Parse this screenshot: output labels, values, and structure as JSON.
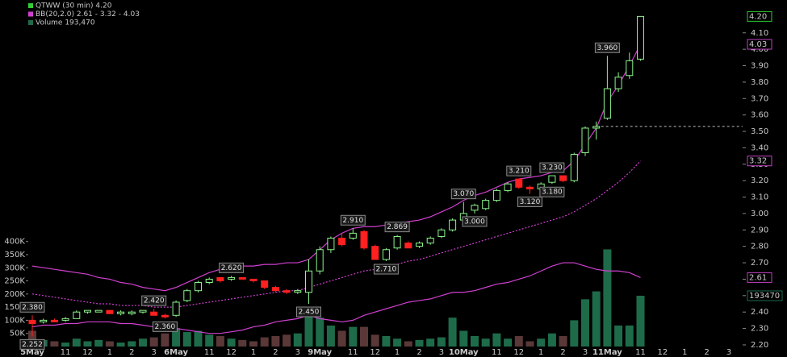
{
  "chart_data": {
    "type": "candlestick",
    "legend": [
      {
        "text": "QTWW (30 min) 4.20",
        "color": "#e6e6e6",
        "icon": "#33cc33"
      },
      {
        "text": "BB(20,2.0) 2.61 - 3.32 - 4.03",
        "color": "#d040d0",
        "icon": "#d040d0"
      },
      {
        "text": "Volume 193,470",
        "color": "#2aa070",
        "icon": "#1e6b4a"
      }
    ],
    "categories": [
      "5May",
      null,
      null,
      "11",
      null,
      "12",
      null,
      "1",
      null,
      "2",
      null,
      "3",
      null,
      "6May",
      null,
      null,
      "11",
      null,
      "12",
      null,
      "1",
      null,
      "2",
      null,
      "3",
      null,
      "9May",
      null,
      null,
      "11",
      null,
      "12",
      null,
      "1",
      null,
      "2",
      null,
      "3",
      null,
      "10May",
      null,
      null,
      "11",
      null,
      "12",
      null,
      "1",
      null,
      "2",
      null,
      "3",
      null,
      "11May",
      null,
      null,
      "11",
      null,
      "12",
      null,
      "1",
      null,
      "2",
      null,
      "3",
      null
    ],
    "open": [
      2.35,
      2.34,
      2.35,
      2.35,
      2.36,
      2.4,
      2.4,
      2.41,
      2.39,
      2.39,
      2.4,
      2.4,
      2.38,
      2.38,
      2.47,
      2.53,
      2.58,
      2.61,
      2.6,
      2.61,
      2.6,
      2.59,
      2.55,
      2.53,
      2.52,
      2.52,
      2.65,
      2.78,
      2.85,
      2.85,
      2.89,
      2.8,
      2.72,
      2.79,
      2.82,
      2.8,
      2.82,
      2.86,
      2.9,
      2.96,
      3.02,
      3.03,
      3.08,
      3.14,
      3.21,
      3.16,
      3.15,
      3.19,
      3.23,
      3.2,
      3.37,
      3.52,
      3.58,
      3.76,
      3.84,
      3.94,
      null,
      null,
      null,
      null,
      null,
      null,
      null,
      null,
      null
    ],
    "high": [
      2.38,
      2.36,
      2.36,
      2.37,
      2.41,
      2.41,
      2.41,
      2.41,
      2.41,
      2.41,
      2.41,
      2.42,
      2.39,
      2.47,
      2.54,
      2.59,
      2.61,
      2.61,
      2.62,
      2.61,
      2.6,
      2.59,
      2.56,
      2.54,
      2.54,
      2.72,
      2.8,
      2.86,
      2.88,
      2.91,
      2.9,
      2.81,
      2.79,
      2.869,
      2.83,
      2.83,
      2.86,
      2.91,
      2.97,
      3.07,
      3.06,
      3.09,
      3.15,
      3.19,
      3.21,
      3.17,
      3.19,
      3.23,
      3.23,
      3.37,
      3.53,
      3.56,
      3.96,
      3.86,
      3.98,
      4.2,
      null,
      null,
      null,
      null,
      null,
      null,
      null,
      null,
      null
    ],
    "low": [
      2.252,
      2.33,
      2.34,
      2.34,
      2.36,
      2.39,
      2.4,
      2.39,
      2.38,
      2.38,
      2.39,
      2.38,
      2.36,
      2.37,
      2.46,
      2.52,
      2.57,
      2.58,
      2.59,
      2.6,
      2.58,
      2.54,
      2.52,
      2.51,
      2.51,
      2.45,
      2.63,
      2.76,
      2.8,
      2.84,
      2.78,
      2.72,
      2.71,
      2.78,
      2.79,
      2.79,
      2.81,
      2.85,
      2.89,
      2.95,
      3.0,
      3.02,
      3.07,
      3.13,
      3.15,
      3.12,
      3.14,
      3.18,
      3.19,
      3.19,
      3.35,
      3.45,
      3.57,
      3.74,
      3.82,
      3.93,
      null,
      null,
      null,
      null,
      null,
      null,
      null,
      null,
      null
    ],
    "close": [
      2.33,
      2.35,
      2.34,
      2.36,
      2.4,
      2.41,
      2.41,
      2.39,
      2.4,
      2.4,
      2.41,
      2.38,
      2.37,
      2.46,
      2.53,
      2.58,
      2.6,
      2.59,
      2.61,
      2.6,
      2.59,
      2.55,
      2.53,
      2.52,
      2.53,
      2.65,
      2.78,
      2.85,
      2.81,
      2.88,
      2.79,
      2.72,
      2.78,
      2.86,
      2.79,
      2.82,
      2.85,
      2.9,
      2.96,
      3.0,
      3.05,
      3.08,
      3.14,
      3.18,
      3.16,
      3.15,
      3.18,
      3.23,
      3.2,
      3.36,
      3.52,
      3.53,
      3.76,
      3.83,
      3.93,
      4.2,
      null,
      null,
      null,
      null,
      null,
      null,
      null,
      null,
      null
    ],
    "volume": [
      60000,
      25000,
      20000,
      15000,
      30000,
      20000,
      25000,
      20000,
      15000,
      20000,
      30000,
      35000,
      50000,
      70000,
      55000,
      60000,
      45000,
      40000,
      30000,
      25000,
      20000,
      35000,
      40000,
      45000,
      50000,
      140000,
      110000,
      80000,
      60000,
      75000,
      75000,
      45000,
      40000,
      30000,
      20000,
      25000,
      30000,
      35000,
      110000,
      60000,
      40000,
      30000,
      50000,
      30000,
      40000,
      20000,
      30000,
      50000,
      40000,
      100000,
      180000,
      210000,
      370000,
      80000,
      80000,
      193470,
      null,
      null,
      null,
      null,
      null,
      null,
      null,
      null,
      null
    ],
    "bollinger": {
      "color": "#d040d0",
      "upper": [
        2.68,
        2.67,
        2.66,
        2.65,
        2.64,
        2.63,
        2.61,
        2.6,
        2.58,
        2.57,
        2.55,
        2.54,
        2.53,
        2.55,
        2.58,
        2.61,
        2.64,
        2.66,
        2.67,
        2.68,
        2.68,
        2.69,
        2.69,
        2.7,
        2.7,
        2.72,
        2.78,
        2.84,
        2.88,
        2.91,
        2.92,
        2.92,
        2.93,
        2.94,
        2.95,
        2.96,
        2.98,
        3.01,
        3.04,
        3.08,
        3.11,
        3.13,
        3.16,
        3.19,
        3.21,
        3.22,
        3.23,
        3.25,
        3.26,
        3.32,
        3.42,
        3.52,
        3.68,
        3.78,
        3.9,
        4.03,
        null,
        null,
        null,
        null,
        null,
        null,
        null,
        null,
        null
      ],
      "middle": [
        2.51,
        2.5,
        2.49,
        2.48,
        2.47,
        2.46,
        2.45,
        2.45,
        2.44,
        2.44,
        2.44,
        2.43,
        2.43,
        2.43,
        2.44,
        2.45,
        2.46,
        2.47,
        2.48,
        2.49,
        2.5,
        2.51,
        2.52,
        2.53,
        2.53,
        2.55,
        2.57,
        2.59,
        2.61,
        2.63,
        2.65,
        2.66,
        2.68,
        2.69,
        2.71,
        2.72,
        2.74,
        2.76,
        2.78,
        2.8,
        2.82,
        2.84,
        2.86,
        2.88,
        2.9,
        2.92,
        2.94,
        2.96,
        2.98,
        3.01,
        3.05,
        3.09,
        3.14,
        3.19,
        3.25,
        3.32,
        null,
        null,
        null,
        null,
        null,
        null,
        null,
        null,
        null
      ],
      "lower": [
        2.31,
        2.32,
        2.32,
        2.33,
        2.33,
        2.34,
        2.34,
        2.34,
        2.33,
        2.33,
        2.32,
        2.31,
        2.31,
        2.3,
        2.29,
        2.28,
        2.27,
        2.27,
        2.28,
        2.29,
        2.31,
        2.32,
        2.34,
        2.35,
        2.36,
        2.38,
        2.36,
        2.35,
        2.34,
        2.35,
        2.38,
        2.4,
        2.42,
        2.44,
        2.46,
        2.47,
        2.48,
        2.5,
        2.52,
        2.52,
        2.53,
        2.55,
        2.57,
        2.58,
        2.6,
        2.62,
        2.65,
        2.68,
        2.7,
        2.7,
        2.68,
        2.66,
        2.65,
        2.65,
        2.64,
        2.61,
        null,
        null,
        null,
        null,
        null,
        null,
        null,
        null,
        null
      ]
    },
    "up_color": "#8cf58c",
    "down_color": "#ff2020",
    "volume_up_color": "#1e6b4a",
    "volume_down_color": "#5a3838",
    "ylim": [
      2.19,
      4.3
    ],
    "yticks": [
      {
        "value": 2.2,
        "label": "2.20"
      },
      {
        "value": 2.3,
        "label": "2.30"
      },
      {
        "value": 2.4,
        "label": "2.40"
      },
      {
        "value": 2.5,
        "label": "2.50"
      },
      {
        "value": 2.6,
        "label": "2.60"
      },
      {
        "value": 2.7,
        "label": "2.70"
      },
      {
        "value": 2.8,
        "label": "2.80"
      },
      {
        "value": 2.9,
        "label": "2.90"
      },
      {
        "value": 3.0,
        "label": "3.00"
      },
      {
        "value": 3.1,
        "label": "3.10"
      },
      {
        "value": 3.2,
        "label": "3.20"
      },
      {
        "value": 3.3,
        "label": "3.30"
      },
      {
        "value": 3.4,
        "label": "3.40"
      },
      {
        "value": 3.5,
        "label": "3.50"
      },
      {
        "value": 3.6,
        "label": "3.60"
      },
      {
        "value": 3.7,
        "label": "3.70"
      },
      {
        "value": 3.8,
        "label": "3.80"
      },
      {
        "value": 3.9,
        "label": "3.90"
      },
      {
        "value": 4.0,
        "label": "4.00"
      },
      {
        "value": 4.1,
        "label": "4.10"
      }
    ],
    "y2lim": [
      0,
      1320000
    ],
    "y2ticks": [
      {
        "value": 50000,
        "label": "50K"
      },
      {
        "value": 100000,
        "label": "100K"
      },
      {
        "value": 150000,
        "label": "150K"
      },
      {
        "value": 200000,
        "label": "200K"
      },
      {
        "value": 250000,
        "label": "250K"
      },
      {
        "value": 300000,
        "label": "300K"
      },
      {
        "value": 350000,
        "label": "350K"
      },
      {
        "value": 400000,
        "label": "400K"
      }
    ],
    "level": 3.53,
    "annotations": [
      {
        "bar": 0,
        "value": 2.38,
        "label": "2.380"
      },
      {
        "bar": 0,
        "value": 2.252,
        "label": "2.252"
      },
      {
        "bar": 11,
        "value": 2.42,
        "label": "2.420"
      },
      {
        "bar": 12,
        "value": 2.36,
        "label": "2.360"
      },
      {
        "bar": 18,
        "value": 2.62,
        "label": "2.620"
      },
      {
        "bar": 25,
        "value": 2.45,
        "label": "2.450"
      },
      {
        "bar": 29,
        "value": 2.91,
        "label": "2.910"
      },
      {
        "bar": 32,
        "value": 2.71,
        "label": "2.710"
      },
      {
        "bar": 33,
        "value": 2.869,
        "label": "2.869"
      },
      {
        "bar": 39,
        "value": 3.07,
        "label": "3.070"
      },
      {
        "bar": 40,
        "value": 3.0,
        "label": "3.000"
      },
      {
        "bar": 44,
        "value": 3.21,
        "label": "3.210"
      },
      {
        "bar": 45,
        "value": 3.12,
        "label": "3.120"
      },
      {
        "bar": 47,
        "value": 3.23,
        "label": "3.230"
      },
      {
        "bar": 47,
        "value": 3.18,
        "label": "3.180"
      },
      {
        "bar": 52,
        "value": 3.96,
        "label": "3.960"
      }
    ],
    "axis_markers": [
      {
        "value": 4.2,
        "label": "4.20",
        "color": "#33cc33"
      },
      {
        "value": 4.03,
        "label": "4.03",
        "color": "#c040c0"
      },
      {
        "value": 3.32,
        "label": "3.32",
        "color": "#c040c0"
      },
      {
        "value": 2.61,
        "label": "2.61",
        "color": "#c040c0"
      },
      {
        "value": 193470,
        "label": "193470",
        "axis": "y2",
        "color": "#1e6b4a"
      }
    ]
  }
}
